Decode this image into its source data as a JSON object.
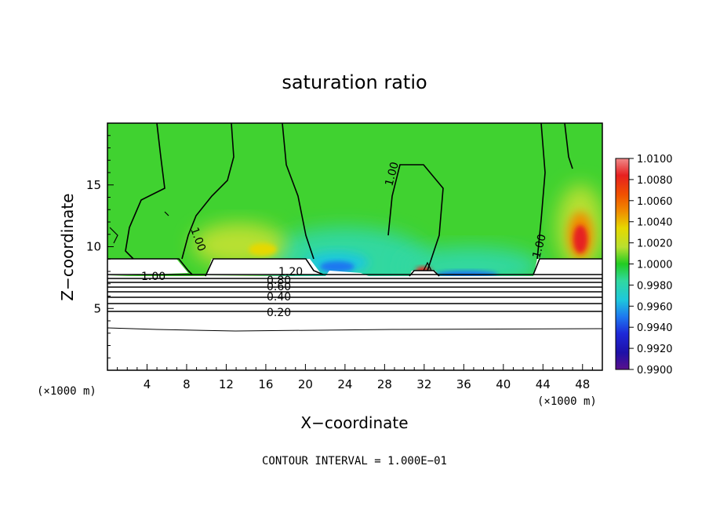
{
  "chart_data": {
    "type": "heatmap",
    "title": "saturation ratio",
    "xlabel": "X−coordinate",
    "ylabel": "Z−coordinate",
    "x_multiplier_label": "(×1000 m)",
    "z_multiplier_label": "(×1000 m)",
    "xlim": [
      0,
      50
    ],
    "ylim": [
      0,
      20
    ],
    "x_ticks": [
      4,
      8,
      12,
      16,
      20,
      24,
      28,
      32,
      36,
      40,
      44,
      48
    ],
    "y_ticks": [
      5,
      10,
      15
    ],
    "colorbar": {
      "min": 0.99,
      "max": 1.01,
      "labels": [
        "1.0100",
        "1.0080",
        "1.0060",
        "1.0040",
        "1.0020",
        "1.0000",
        "0.9980",
        "0.9960",
        "0.9940",
        "0.9920",
        "0.9900"
      ],
      "colors": [
        "#f08a8a",
        "#e62020",
        "#f05000",
        "#f08c00",
        "#e6d800",
        "#b8e030",
        "#22cc22",
        "#30d8a0",
        "#1ec8dc",
        "#1e78f0",
        "#1e28d8",
        "#1e10a8",
        "#5a108c"
      ]
    },
    "contour_labels": [
      "1.00",
      "1.00",
      "1.00",
      "1.00",
      "1.20",
      "0.80",
      "0.60",
      "0.40",
      "0.20"
    ],
    "contour_interval_text": "CONTOUR INTERVAL = 1.000E−01"
  }
}
